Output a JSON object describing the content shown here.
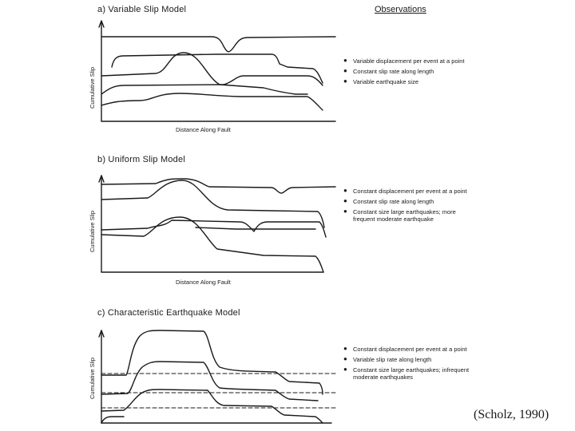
{
  "observations_heading": "Observations",
  "panels": [
    {
      "title": "a) Variable Slip Model",
      "ylabel": "Cumulative Slip",
      "xlabel": "Distance Along Fault",
      "observations": [
        "Variable displacement per event at a point",
        "Constant slip rate along length",
        "Variable earthquake size"
      ]
    },
    {
      "title": "b) Uniform Slip Model",
      "ylabel": "Cumulative Slip",
      "xlabel": "Distance Along Fault",
      "observations": [
        "Constant displacement per event at a point",
        "Constant slip rate along length",
        "Constant size large earthquakes; more frequent moderate earthquake"
      ]
    },
    {
      "title": "c) Characteristic Earthquake Model",
      "ylabel": "Cumulative Slip",
      "xlabel": "",
      "observations": [
        "Constant displacement per event at a point",
        "Variable slip rate along length",
        "Constant size large earthquakes; infrequent moderate earthquakes"
      ]
    }
  ],
  "citation": "(Scholz, 1990)"
}
